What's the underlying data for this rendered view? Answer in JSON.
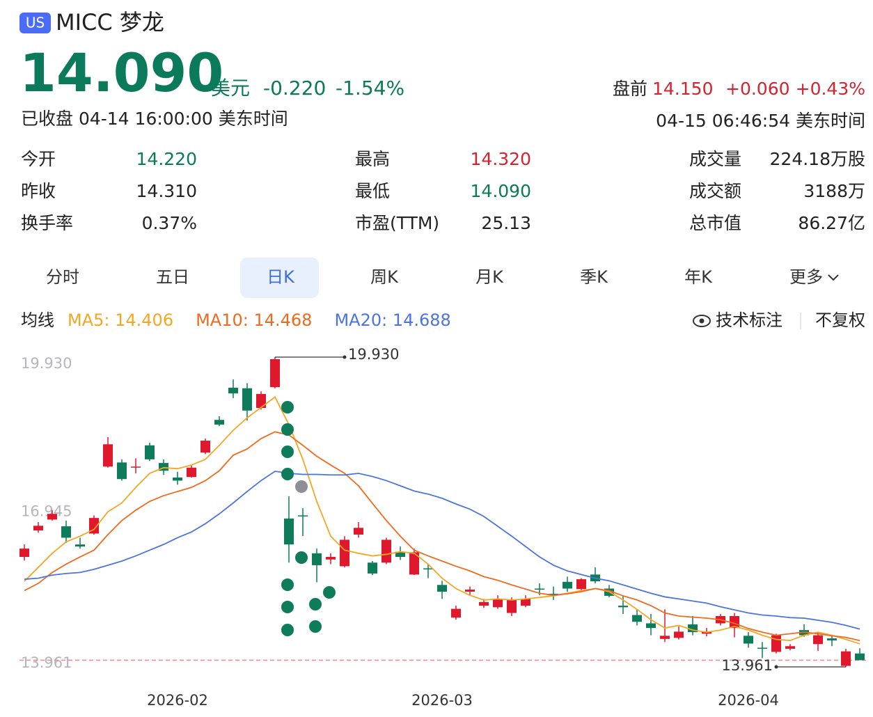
{
  "header": {
    "badge": "US",
    "name": "MICC 梦龙",
    "price": "14.090",
    "currency": "美元",
    "change": "-0.220",
    "change_pct": "-1.54%",
    "pre_label": "盘前",
    "pre_price": "14.150",
    "pre_change": "+0.060",
    "pre_pct": "+0.43%",
    "status": "已收盘 04-14 16:00:00 美东时间",
    "pre_time": "04-15 06:46:54 美东时间"
  },
  "stats": [
    [
      "今开",
      "14.220"
    ],
    [
      "最高",
      "14.320"
    ],
    [
      "成交量",
      "224.18万股"
    ],
    [
      "昨收",
      "14.310"
    ],
    [
      "最低",
      "14.090"
    ],
    [
      "成交额",
      "3188万"
    ],
    [
      "换手率",
      "0.37%"
    ],
    [
      "市盈(TTM)",
      "25.13"
    ],
    [
      "总市值",
      "86.27亿"
    ]
  ],
  "tabs": [
    "分时",
    "五日",
    "日K",
    "周K",
    "月K",
    "季K",
    "年K",
    "更多"
  ],
  "ma_label": "均线",
  "tech_label": "技术标注",
  "adjust_label": "不复权",
  "chart_data": {
    "type": "candlestick",
    "categories": [
      null,
      null,
      null,
      null,
      null,
      null,
      null,
      null,
      null,
      null,
      null,
      "2026-02",
      null,
      null,
      null,
      null,
      null,
      null,
      null,
      null,
      null,
      null,
      null,
      null,
      null,
      null,
      null,
      null,
      null,
      null,
      "2026-03",
      null,
      null,
      null,
      null,
      null,
      null,
      null,
      null,
      null,
      null,
      null,
      null,
      null,
      null,
      null,
      null,
      null,
      null,
      null,
      null,
      null,
      "2026-04",
      null,
      null,
      null,
      null,
      null,
      null,
      null,
      null
    ],
    "open": [
      16.08,
      16.59,
      16.8,
      16.67,
      16.32,
      16.53,
      17.82,
      17.9,
      17.8,
      18.23,
      17.89,
      17.61,
      17.62,
      18.09,
      18.72,
      19.34,
      19.33,
      18.95,
      19.35,
      16.82,
      16.88,
      16.15,
      16.03,
      15.9,
      16.51,
      15.97,
      15.97,
      16.18,
      15.74,
      15.86,
      15.54,
      14.91,
      15.41,
      15.14,
      15.11,
      15.0,
      15.14,
      15.47,
      15.37,
      15.6,
      15.46,
      15.74,
      15.47,
      15.14,
      14.96,
      14.8,
      14.5,
      14.52,
      14.78,
      14.6,
      14.8,
      14.71,
      14.56,
      14.33,
      14.25,
      14.31,
      14.67,
      14.4,
      14.51,
      13.98,
      14.22
    ],
    "close": [
      16.24,
      16.68,
      16.91,
      16.45,
      16.28,
      16.83,
      18.25,
      17.58,
      17.82,
      17.96,
      17.74,
      17.55,
      17.8,
      18.32,
      18.63,
      19.23,
      18.9,
      19.22,
      19.89,
      16.32,
      16.86,
      15.92,
      16.08,
      16.41,
      16.64,
      15.76,
      16.41,
      16.08,
      16.17,
      15.84,
      15.41,
      15.08,
      15.45,
      15.21,
      15.27,
      15.25,
      15.27,
      15.45,
      15.34,
      15.47,
      15.65,
      15.61,
      15.33,
      15.11,
      14.83,
      14.71,
      14.56,
      14.64,
      14.63,
      14.64,
      14.94,
      14.94,
      14.41,
      14.31,
      14.57,
      14.36,
      14.57,
      14.57,
      14.47,
      14.26,
      14.09
    ],
    "high": [
      16.32,
      16.75,
      16.98,
      16.78,
      16.45,
      16.88,
      18.39,
      17.96,
      17.98,
      18.28,
      17.96,
      17.72,
      17.85,
      18.36,
      18.79,
      19.5,
      19.43,
      19.27,
      19.93,
      17.25,
      17.02,
      16.24,
      16.15,
      16.48,
      16.75,
      16.0,
      16.45,
      16.28,
      16.24,
      15.94,
      15.62,
      15.14,
      15.51,
      15.27,
      15.34,
      15.3,
      15.34,
      15.57,
      15.51,
      15.7,
      15.67,
      15.88,
      15.54,
      15.34,
      15.07,
      14.98,
      15.07,
      14.74,
      14.94,
      14.71,
      14.98,
      15.0,
      14.63,
      14.44,
      14.6,
      14.4,
      14.78,
      14.63,
      14.57,
      14.31,
      14.32
    ],
    "low": [
      16.01,
      16.55,
      16.78,
      16.35,
      16.24,
      16.51,
      17.8,
      17.55,
      17.69,
      17.93,
      17.66,
      17.47,
      17.61,
      18.06,
      18.6,
      19.14,
      18.71,
      18.92,
      19.33,
      15.97,
      16.48,
      15.59,
      15.94,
      15.88,
      16.45,
      15.73,
      15.94,
      16.02,
      15.73,
      15.67,
      15.27,
      14.87,
      15.35,
      15.1,
      15.08,
      14.94,
      15.11,
      15.34,
      15.25,
      15.41,
      15.43,
      15.57,
      15.3,
      14.98,
      14.76,
      14.57,
      14.44,
      14.49,
      14.57,
      14.55,
      14.76,
      14.53,
      14.33,
      14.13,
      14.22,
      14.28,
      14.54,
      14.27,
      14.36,
      13.961,
      14.09
    ],
    "up_color": "#e0182e",
    "down_color": "#0e7c5a",
    "series": [
      {
        "name": "MA5: 14.406",
        "color": "#f5a623",
        "values": [
          15.61,
          15.88,
          16.15,
          16.37,
          16.48,
          16.61,
          16.95,
          17.12,
          17.42,
          17.69,
          17.8,
          17.78,
          17.85,
          17.96,
          18.23,
          18.52,
          18.76,
          18.96,
          19.16,
          18.63,
          17.96,
          17.15,
          16.48,
          16.21,
          16.15,
          16.1,
          16.13,
          16.18,
          16.15,
          15.94,
          15.67,
          15.47,
          15.34,
          15.25,
          15.27,
          15.25,
          15.27,
          15.3,
          15.33,
          15.38,
          15.43,
          15.47,
          15.41,
          15.25,
          15.07,
          14.87,
          14.71,
          14.76,
          14.67,
          14.63,
          14.67,
          14.74,
          14.67,
          14.57,
          14.49,
          14.47,
          14.57,
          14.63,
          14.57,
          14.49,
          14.406
        ]
      },
      {
        "name": "MA10: 14.468",
        "color": "#f06a1e",
        "values": [
          15.43,
          15.57,
          15.78,
          15.94,
          16.08,
          16.21,
          16.51,
          16.78,
          16.98,
          17.15,
          17.26,
          17.34,
          17.42,
          17.55,
          17.74,
          18.04,
          18.16,
          18.36,
          18.49,
          18.43,
          18.23,
          18.02,
          17.85,
          17.69,
          17.45,
          17.11,
          16.78,
          16.48,
          16.21,
          16.1,
          16.0,
          15.9,
          15.81,
          15.7,
          15.63,
          15.54,
          15.46,
          15.38,
          15.34,
          15.37,
          15.41,
          15.47,
          15.43,
          15.33,
          15.25,
          15.14,
          15.0,
          14.94,
          14.92,
          14.9,
          14.87,
          14.8,
          14.7,
          14.63,
          14.57,
          14.6,
          14.63,
          14.6,
          14.56,
          14.53,
          14.468
        ]
      },
      {
        "name": "MA20: 14.688",
        "color": "#4b74e0",
        "values": [
          15.65,
          15.67,
          15.73,
          15.76,
          15.78,
          15.84,
          15.92,
          16.0,
          16.1,
          16.21,
          16.32,
          16.45,
          16.56,
          16.72,
          16.91,
          17.12,
          17.34,
          17.55,
          17.73,
          17.69,
          17.67,
          17.67,
          17.66,
          17.66,
          17.69,
          17.63,
          17.55,
          17.45,
          17.35,
          17.29,
          17.21,
          17.1,
          17.0,
          16.86,
          16.67,
          16.48,
          16.28,
          16.08,
          15.92,
          15.81,
          15.74,
          15.67,
          15.62,
          15.54,
          15.46,
          15.38,
          15.31,
          15.27,
          15.23,
          15.19,
          15.12,
          15.06,
          15.0,
          14.96,
          14.94,
          14.91,
          14.9,
          14.86,
          14.82,
          14.76,
          14.688
        ]
      }
    ],
    "ylim": [
      13.961,
      19.93
    ],
    "yticks": [
      {
        "value": 19.93,
        "label": "19.930"
      },
      {
        "value": 16.945,
        "label": "16.945"
      },
      {
        "value": 13.961,
        "label": "13.961"
      }
    ],
    "price_line": 14.09,
    "high_mark": {
      "value": 19.93,
      "label": "19.930"
    },
    "low_mark": {
      "value": 13.961,
      "label": "13.961"
    }
  }
}
